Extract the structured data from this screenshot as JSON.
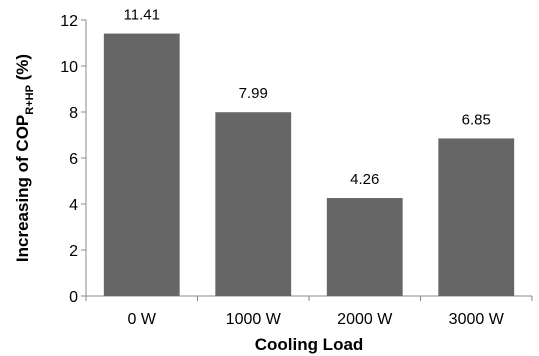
{
  "chart_data": {
    "type": "bar",
    "categories": [
      "0 W",
      "1000 W",
      "2000 W",
      "3000 W"
    ],
    "values": [
      11.41,
      7.99,
      4.26,
      6.85
    ],
    "data_labels": [
      "11.41",
      "7.99",
      "4.26",
      "6.85"
    ],
    "xlabel": "Cooling Load",
    "ylabel": {
      "prefix": "Increasing of COP",
      "subscript": "R+HP",
      "suffix": " (%)"
    },
    "ylim": [
      0,
      12
    ],
    "yticks": [
      "0",
      "2",
      "4",
      "6",
      "8",
      "10",
      "12"
    ],
    "grid": false,
    "legend": "none",
    "colors": {
      "bar": "#666666",
      "axis": "#888888"
    }
  }
}
